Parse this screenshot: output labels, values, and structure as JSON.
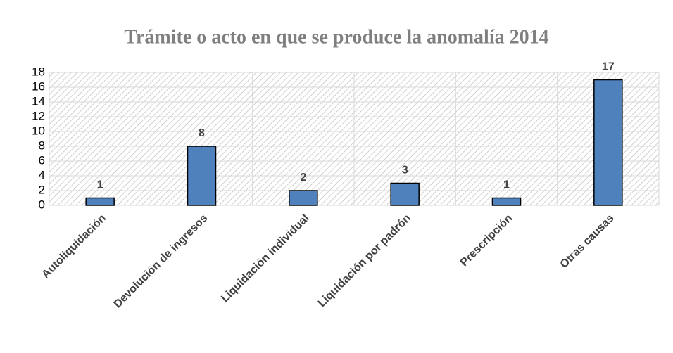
{
  "chart_data": {
    "type": "bar",
    "title": "Trámite o acto en que se produce la anomalía 2014",
    "categories": [
      "Autoliquidación",
      "Devolución de ingresos",
      "Liquidación individual",
      "Liquidación por padrón",
      "Prescripción",
      "Otras causas"
    ],
    "values": [
      1,
      8,
      2,
      3,
      1,
      17
    ],
    "color": "#4f81bd",
    "ylim": [
      0,
      18
    ],
    "yticks": [
      0,
      2,
      4,
      6,
      8,
      10,
      12,
      14,
      16,
      18
    ],
    "grid": true
  }
}
